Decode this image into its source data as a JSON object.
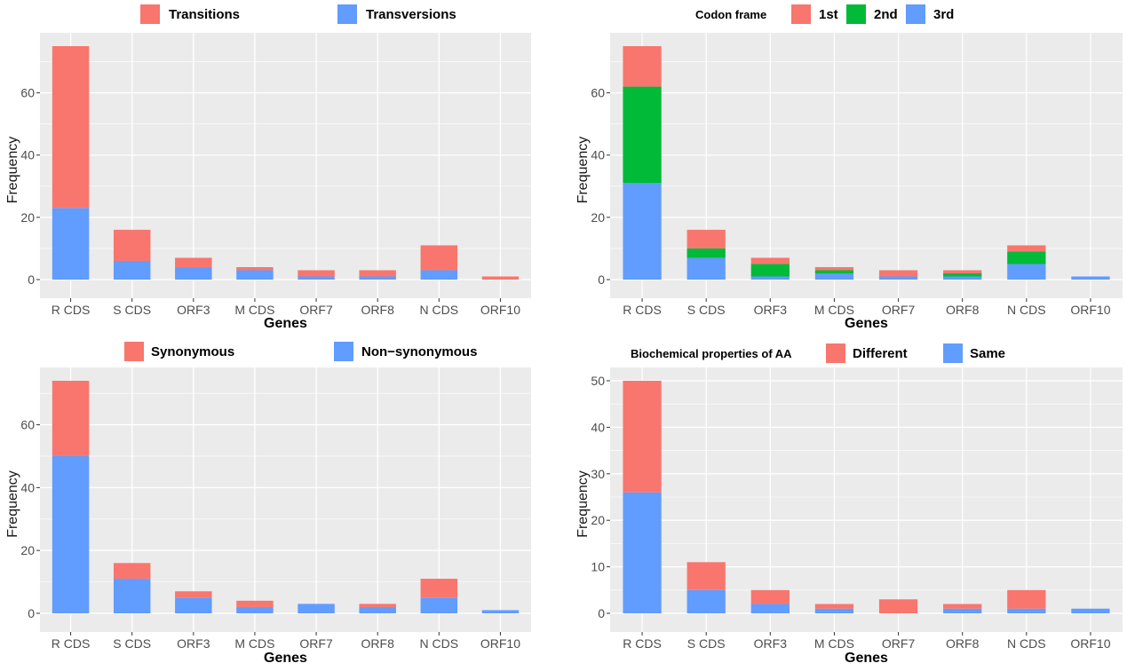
{
  "colors": {
    "red": "#F8766D",
    "green": "#00BA38",
    "blue": "#619CFF",
    "panel_bg": "#EBEBEB",
    "grid": "#FFFFFF"
  },
  "chart_data": [
    {
      "type": "bar",
      "stacked": true,
      "xlabel": "Genes",
      "ylabel": "Frequency",
      "ylim": [
        0,
        75
      ],
      "yticks": [
        0,
        20,
        40,
        60
      ],
      "legend_title": "",
      "legend_position": "top",
      "categories": [
        "R CDS",
        "S CDS",
        "ORF3",
        "M CDS",
        "ORF7",
        "ORF8",
        "N CDS",
        "ORF10"
      ],
      "series": [
        {
          "name": "Transversions",
          "color": "#619CFF",
          "values": [
            23,
            6,
            4,
            3,
            1,
            1,
            3,
            0
          ]
        },
        {
          "name": "Transitions",
          "color": "#F8766D",
          "values": [
            52,
            10,
            3,
            1,
            2,
            2,
            8,
            1
          ]
        }
      ],
      "legend": [
        {
          "name": "Transitions",
          "color": "#F8766D"
        },
        {
          "name": "Transversions",
          "color": "#619CFF"
        }
      ]
    },
    {
      "type": "bar",
      "stacked": true,
      "xlabel": "Genes",
      "ylabel": "Frequency",
      "ylim": [
        0,
        75
      ],
      "yticks": [
        0,
        20,
        40,
        60
      ],
      "legend_title": "Codon frame",
      "legend_position": "top",
      "categories": [
        "R CDS",
        "S CDS",
        "ORF3",
        "M CDS",
        "ORF7",
        "ORF8",
        "N CDS",
        "ORF10"
      ],
      "series": [
        {
          "name": "3rd",
          "color": "#619CFF",
          "values": [
            31,
            7,
            1,
            2,
            1,
            1,
            5,
            1
          ]
        },
        {
          "name": "2nd",
          "color": "#00BA38",
          "values": [
            31,
            3,
            4,
            1,
            0,
            1,
            4,
            0
          ]
        },
        {
          "name": "1st",
          "color": "#F8766D",
          "values": [
            13,
            6,
            2,
            1,
            2,
            1,
            2,
            0
          ]
        }
      ],
      "legend": [
        {
          "name": "1st",
          "color": "#F8766D"
        },
        {
          "name": "2nd",
          "color": "#00BA38"
        },
        {
          "name": "3rd",
          "color": "#619CFF"
        }
      ]
    },
    {
      "type": "bar",
      "stacked": true,
      "xlabel": "Genes",
      "ylabel": "Frequency",
      "ylim": [
        0,
        74
      ],
      "yticks": [
        0,
        20,
        40,
        60
      ],
      "legend_title": "",
      "legend_position": "top",
      "categories": [
        "R CDS",
        "S CDS",
        "ORF3",
        "M CDS",
        "ORF7",
        "ORF8",
        "N CDS",
        "ORF10"
      ],
      "series": [
        {
          "name": "Non−synonymous",
          "color": "#619CFF",
          "values": [
            50,
            11,
            5,
            2,
            3,
            2,
            5,
            1
          ]
        },
        {
          "name": "Synonymous",
          "color": "#F8766D",
          "values": [
            24,
            5,
            2,
            2,
            0,
            1,
            6,
            0
          ]
        }
      ],
      "legend": [
        {
          "name": "Synonymous",
          "color": "#F8766D"
        },
        {
          "name": "Non−synonymous",
          "color": "#619CFF"
        }
      ]
    },
    {
      "type": "bar",
      "stacked": true,
      "xlabel": "Genes",
      "ylabel": "Frequency",
      "ylim": [
        0,
        50
      ],
      "yticks": [
        0,
        10,
        20,
        30,
        40,
        50
      ],
      "legend_title": "Biochemical properties of AA",
      "legend_position": "top",
      "categories": [
        "R CDS",
        "S CDS",
        "ORF3",
        "M CDS",
        "ORF7",
        "ORF8",
        "N CDS",
        "ORF10"
      ],
      "series": [
        {
          "name": "Same",
          "color": "#619CFF",
          "values": [
            26,
            5,
            2,
            1,
            0,
            1,
            1,
            1
          ]
        },
        {
          "name": "Different",
          "color": "#F8766D",
          "values": [
            24,
            6,
            3,
            1,
            3,
            1,
            4,
            0
          ]
        }
      ],
      "legend": [
        {
          "name": "Different",
          "color": "#F8766D"
        },
        {
          "name": "Same",
          "color": "#619CFF"
        }
      ]
    }
  ]
}
